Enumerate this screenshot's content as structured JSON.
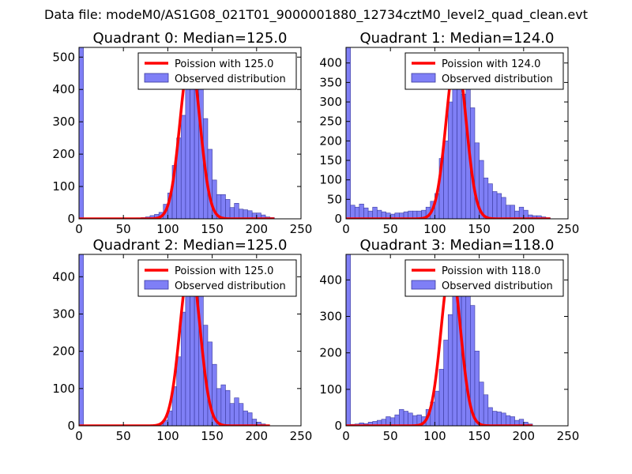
{
  "figure": {
    "suptitle": "Data file: modeM0/AS1G08_021T01_9000001880_12734cztM0_level2_quad_clean.evt"
  },
  "chart_data": [
    {
      "type": "bar",
      "title": "Quadrant 0: Median=125.0",
      "median": 125.0,
      "xlim": [
        0,
        250
      ],
      "ylim": [
        0,
        530
      ],
      "xticks": [
        0,
        50,
        100,
        150,
        200,
        250
      ],
      "yticks": [
        0,
        100,
        200,
        300,
        400,
        500
      ],
      "legend": {
        "location": "top-right",
        "entries": [
          "Poission with 125.0",
          "Observed distribution"
        ]
      },
      "bin_width": 5,
      "spike": {
        "x": 0,
        "value": 530
      },
      "bins": [
        [
          60,
          2
        ],
        [
          65,
          3
        ],
        [
          70,
          4
        ],
        [
          75,
          6
        ],
        [
          80,
          10
        ],
        [
          85,
          14
        ],
        [
          90,
          20
        ],
        [
          95,
          45
        ],
        [
          100,
          80
        ],
        [
          105,
          165
        ],
        [
          110,
          250
        ],
        [
          115,
          320
        ],
        [
          120,
          410
        ],
        [
          125,
          480
        ],
        [
          130,
          500
        ],
        [
          135,
          420
        ],
        [
          140,
          310
        ],
        [
          145,
          215
        ],
        [
          150,
          120
        ],
        [
          155,
          75
        ],
        [
          160,
          75
        ],
        [
          165,
          60
        ],
        [
          170,
          35
        ],
        [
          175,
          48
        ],
        [
          180,
          30
        ],
        [
          185,
          28
        ],
        [
          190,
          25
        ],
        [
          195,
          18
        ],
        [
          200,
          18
        ],
        [
          205,
          12
        ],
        [
          210,
          6
        ],
        [
          215,
          4
        ]
      ],
      "poisson": {
        "mean": 125.0,
        "peak": 500,
        "x_range": [
          0,
          220
        ]
      }
    },
    {
      "type": "bar",
      "title": "Quadrant 1: Median=124.0",
      "median": 124.0,
      "xlim": [
        0,
        250
      ],
      "ylim": [
        0,
        440
      ],
      "xticks": [
        0,
        50,
        100,
        150,
        200,
        250
      ],
      "yticks": [
        0,
        50,
        100,
        150,
        200,
        250,
        300,
        350,
        400
      ],
      "legend": {
        "location": "top-right",
        "entries": [
          "Poission with 124.0",
          "Observed distribution"
        ]
      },
      "bin_width": 5,
      "spike": {
        "x": 0,
        "value": 440
      },
      "bins": [
        [
          5,
          35
        ],
        [
          10,
          30
        ],
        [
          15,
          38
        ],
        [
          20,
          28
        ],
        [
          25,
          20
        ],
        [
          30,
          30
        ],
        [
          35,
          22
        ],
        [
          40,
          18
        ],
        [
          45,
          15
        ],
        [
          50,
          12
        ],
        [
          55,
          15
        ],
        [
          60,
          15
        ],
        [
          65,
          18
        ],
        [
          70,
          20
        ],
        [
          75,
          20
        ],
        [
          80,
          20
        ],
        [
          85,
          22
        ],
        [
          90,
          30
        ],
        [
          95,
          45
        ],
        [
          100,
          65
        ],
        [
          105,
          155
        ],
        [
          110,
          200
        ],
        [
          115,
          300
        ],
        [
          120,
          425
        ],
        [
          125,
          385
        ],
        [
          130,
          320
        ],
        [
          135,
          355
        ],
        [
          140,
          285
        ],
        [
          145,
          195
        ],
        [
          150,
          150
        ],
        [
          155,
          105
        ],
        [
          160,
          90
        ],
        [
          165,
          70
        ],
        [
          170,
          65
        ],
        [
          175,
          55
        ],
        [
          180,
          35
        ],
        [
          185,
          35
        ],
        [
          190,
          20
        ],
        [
          195,
          30
        ],
        [
          200,
          22
        ],
        [
          205,
          10
        ],
        [
          210,
          8
        ],
        [
          215,
          8
        ],
        [
          220,
          5
        ],
        [
          225,
          3
        ]
      ],
      "poisson": {
        "mean": 124.0,
        "peak": 420,
        "x_range": [
          0,
          230
        ]
      }
    },
    {
      "type": "bar",
      "title": "Quadrant 2: Median=125.0",
      "median": 125.0,
      "xlim": [
        0,
        250
      ],
      "ylim": [
        0,
        460
      ],
      "xticks": [
        0,
        50,
        100,
        150,
        200,
        250
      ],
      "yticks": [
        0,
        100,
        200,
        300,
        400
      ],
      "legend": {
        "location": "top-right",
        "entries": [
          "Poission with 125.0",
          "Observed distribution"
        ]
      },
      "bin_width": 5,
      "spike": {
        "x": 0,
        "value": 460
      },
      "bins": [
        [
          85,
          3
        ],
        [
          90,
          5
        ],
        [
          95,
          15
        ],
        [
          100,
          40
        ],
        [
          105,
          105
        ],
        [
          110,
          185
        ],
        [
          115,
          305
        ],
        [
          120,
          430
        ],
        [
          125,
          430
        ],
        [
          130,
          375
        ],
        [
          135,
          355
        ],
        [
          140,
          270
        ],
        [
          145,
          225
        ],
        [
          150,
          165
        ],
        [
          155,
          100
        ],
        [
          160,
          110
        ],
        [
          165,
          95
        ],
        [
          170,
          60
        ],
        [
          175,
          75
        ],
        [
          180,
          60
        ],
        [
          185,
          40
        ],
        [
          190,
          35
        ],
        [
          195,
          18
        ],
        [
          200,
          10
        ],
        [
          205,
          5
        ]
      ],
      "poisson": {
        "mean": 125.0,
        "peak": 440,
        "x_range": [
          0,
          215
        ]
      }
    },
    {
      "type": "bar",
      "title": "Quadrant 3: Median=118.0",
      "median": 118.0,
      "xlim": [
        0,
        250
      ],
      "ylim": [
        0,
        470
      ],
      "xticks": [
        0,
        50,
        100,
        150,
        200,
        250
      ],
      "yticks": [
        0,
        100,
        200,
        300,
        400
      ],
      "legend": {
        "location": "top-right",
        "entries": [
          "Poission with 118.0",
          "Observed distribution"
        ]
      },
      "bin_width": 5,
      "spike": {
        "x": 0,
        "value": 470
      },
      "bins": [
        [
          5,
          4
        ],
        [
          10,
          5
        ],
        [
          15,
          8
        ],
        [
          20,
          6
        ],
        [
          25,
          10
        ],
        [
          30,
          12
        ],
        [
          35,
          15
        ],
        [
          40,
          18
        ],
        [
          45,
          25
        ],
        [
          50,
          22
        ],
        [
          55,
          30
        ],
        [
          60,
          45
        ],
        [
          65,
          40
        ],
        [
          70,
          35
        ],
        [
          75,
          28
        ],
        [
          80,
          30
        ],
        [
          85,
          25
        ],
        [
          90,
          45
        ],
        [
          95,
          65
        ],
        [
          100,
          95
        ],
        [
          105,
          155
        ],
        [
          110,
          235
        ],
        [
          115,
          305
        ],
        [
          120,
          395
        ],
        [
          125,
          440
        ],
        [
          130,
          420
        ],
        [
          135,
          375
        ],
        [
          140,
          330
        ],
        [
          145,
          205
        ],
        [
          150,
          120
        ],
        [
          155,
          85
        ],
        [
          160,
          50
        ],
        [
          165,
          40
        ],
        [
          170,
          38
        ],
        [
          175,
          35
        ],
        [
          180,
          28
        ],
        [
          185,
          25
        ],
        [
          190,
          15
        ],
        [
          195,
          18
        ],
        [
          200,
          10
        ],
        [
          205,
          5
        ]
      ],
      "poisson": {
        "mean": 118.0,
        "peak": 440,
        "x_range": [
          0,
          210
        ]
      }
    }
  ]
}
